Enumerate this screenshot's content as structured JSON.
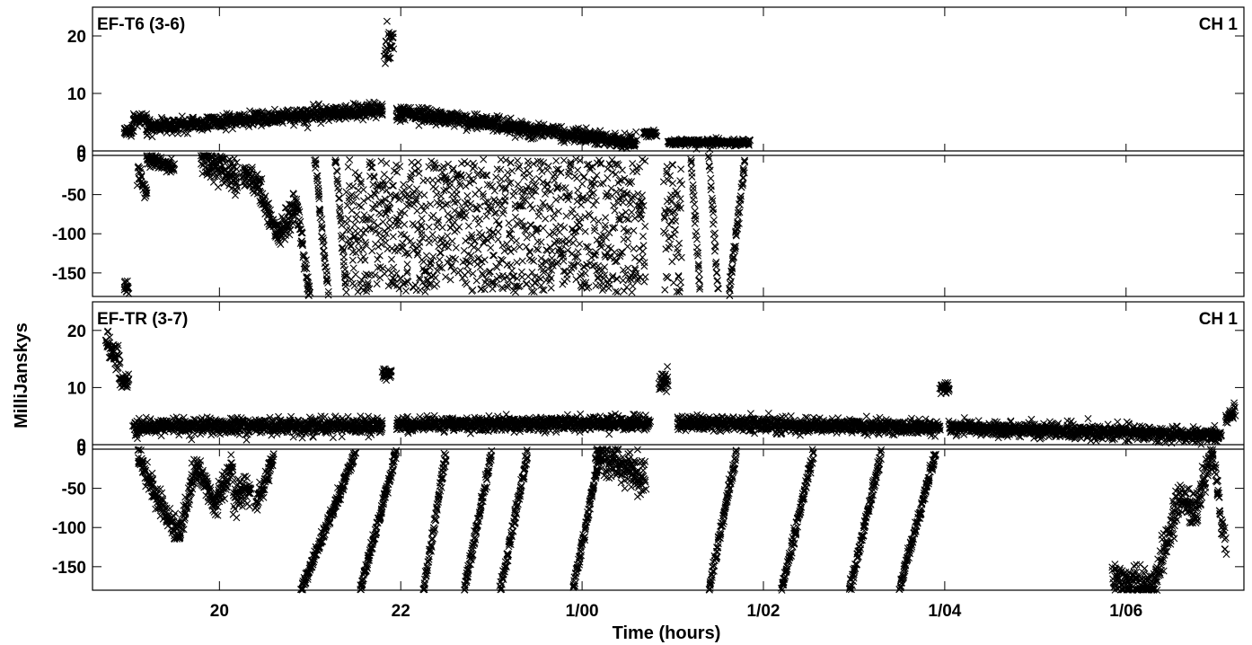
{
  "chart_data": {
    "type": "scatter",
    "marker": "x",
    "marker_color": "#000000",
    "xlabel": "Time (hours)",
    "ylabel": "MilliJanskys",
    "xlim": [
      18.6,
      31.3
    ],
    "x_ticks": [
      {
        "value": 20,
        "label": "20"
      },
      {
        "value": 22,
        "label": "22"
      },
      {
        "value": 24,
        "label": "1/00"
      },
      {
        "value": 26,
        "label": "1/02"
      },
      {
        "value": 28,
        "label": "1/04"
      },
      {
        "value": 30,
        "label": "1/06"
      }
    ],
    "upper_ylim": [
      0,
      25
    ],
    "upper_yticks": [
      {
        "value": 0,
        "label": "0"
      },
      {
        "value": 10,
        "label": "10"
      },
      {
        "value": 20,
        "label": "20"
      }
    ],
    "lower_ylim": [
      -180,
      0
    ],
    "lower_yticks": [
      {
        "value": 0,
        "label": "0"
      },
      {
        "value": -50,
        "label": "-50"
      },
      {
        "value": -100,
        "label": "-100"
      },
      {
        "value": -150,
        "label": "-150"
      }
    ],
    "panels": [
      {
        "baseline": "EF-T6 (3-6)",
        "channel": "CH 1",
        "upper": [
          {
            "t0": 18.95,
            "t1": 19.05,
            "v0": 3.5,
            "v1": 3.5,
            "sd": 0.4
          },
          {
            "t0": 19.05,
            "t1": 19.2,
            "v0": 5.5,
            "v1": 5.5,
            "sd": 0.5
          },
          {
            "t0": 19.2,
            "t1": 21.8,
            "v0": 4.2,
            "v1": 7.2,
            "sd": 0.6
          },
          {
            "t0": 21.82,
            "t1": 21.92,
            "v0": 17,
            "v1": 20,
            "sd": 1.2
          },
          {
            "t0": 21.95,
            "t1": 24.6,
            "v0": 6.8,
            "v1": 1.3,
            "sd": 0.6
          },
          {
            "t0": 24.68,
            "t1": 24.82,
            "v0": 3.0,
            "v1": 3.0,
            "sd": 0.3
          },
          {
            "t0": 24.95,
            "t1": 25.85,
            "v0": 1.5,
            "v1": 1.5,
            "sd": 0.3
          }
        ],
        "lower": [
          {
            "t0": 18.95,
            "t1": 19.0,
            "v0": -165,
            "v1": -175,
            "sd": 4
          },
          {
            "t0": 19.1,
            "t1": 19.2,
            "v0": -25,
            "v1": -45,
            "sd": 8
          },
          {
            "t0": 19.2,
            "t1": 19.5,
            "v0": -5,
            "v1": -15,
            "sd": 4
          },
          {
            "t0": 19.8,
            "t1": 20.2,
            "v0": -5,
            "v1": -30,
            "sd": 10
          },
          {
            "t0": 20.25,
            "t1": 20.45,
            "v0": -20,
            "v1": -40,
            "sd": 8
          },
          {
            "t0": 20.45,
            "t1": 20.65,
            "v0": -50,
            "v1": -100,
            "sd": 8
          },
          {
            "t0": 20.65,
            "t1": 20.85,
            "v0": -100,
            "v1": -70,
            "sd": 10
          },
          {
            "t0": 20.85,
            "t1": 21.0,
            "v0": -60,
            "v1": -180,
            "sd": 6
          },
          {
            "t0": 21.05,
            "t1": 21.2,
            "v0": 0,
            "v1": -175,
            "sd": 4
          },
          {
            "t0": 21.28,
            "t1": 21.4,
            "v0": 0,
            "v1": -175,
            "sd": 4
          },
          {
            "t0": 21.4,
            "t1": 24.7,
            "v0": -5,
            "v1": -175,
            "sd": 40,
            "random": true
          },
          {
            "t0": 24.9,
            "t1": 25.1,
            "v0": -5,
            "v1": -175,
            "sd": 30,
            "random": true
          },
          {
            "t0": 25.2,
            "t1": 25.3,
            "v0": 0,
            "v1": -175,
            "sd": 4
          },
          {
            "t0": 25.4,
            "t1": 25.5,
            "v0": 0,
            "v1": -175,
            "sd": 4
          },
          {
            "t0": 25.62,
            "t1": 25.8,
            "v0": -175,
            "v1": -5,
            "sd": 4
          }
        ]
      },
      {
        "baseline": "EF-TR (3-7)",
        "channel": "CH 1",
        "upper": [
          {
            "t0": 18.75,
            "t1": 18.9,
            "v0": 18,
            "v1": 15,
            "sd": 1.2
          },
          {
            "t0": 18.9,
            "t1": 19.0,
            "v0": 11.5,
            "v1": 11,
            "sd": 0.8
          },
          {
            "t0": 19.05,
            "t1": 21.8,
            "v0": 3.2,
            "v1": 3.3,
            "sd": 0.7
          },
          {
            "t0": 21.8,
            "t1": 21.9,
            "v0": 12.5,
            "v1": 12.5,
            "sd": 0.5
          },
          {
            "t0": 21.95,
            "t1": 24.75,
            "v0": 3.5,
            "v1": 3.8,
            "sd": 0.6
          },
          {
            "t0": 24.85,
            "t1": 24.95,
            "v0": 11,
            "v1": 11,
            "sd": 1
          },
          {
            "t0": 25.05,
            "t1": 27.95,
            "v0": 3.8,
            "v1": 3.0,
            "sd": 0.6
          },
          {
            "t0": 27.95,
            "t1": 28.05,
            "v0": 10,
            "v1": 10,
            "sd": 0.6
          },
          {
            "t0": 28.05,
            "t1": 31.05,
            "v0": 3.0,
            "v1": 1.6,
            "sd": 0.6
          },
          {
            "t0": 31.1,
            "t1": 31.2,
            "v0": 4.5,
            "v1": 6.0,
            "sd": 0.6
          }
        ],
        "lower": [
          {
            "t0": 19.1,
            "t1": 19.3,
            "v0": -5,
            "v1": -60,
            "sd": 8
          },
          {
            "t0": 19.3,
            "t1": 19.55,
            "v0": -60,
            "v1": -110,
            "sd": 8
          },
          {
            "t0": 19.55,
            "t1": 19.75,
            "v0": -110,
            "v1": -20,
            "sd": 8
          },
          {
            "t0": 19.75,
            "t1": 19.95,
            "v0": -20,
            "v1": -70,
            "sd": 8
          },
          {
            "t0": 19.95,
            "t1": 20.15,
            "v0": -70,
            "v1": -20,
            "sd": 8
          },
          {
            "t0": 20.15,
            "t1": 20.35,
            "v0": -60,
            "v1": -50,
            "sd": 10
          },
          {
            "t0": 20.4,
            "t1": 20.6,
            "v0": -75,
            "v1": -5,
            "sd": 6
          },
          {
            "t0": 20.9,
            "t1": 21.5,
            "v0": -180,
            "v1": -5,
            "sd": 4
          },
          {
            "t0": 21.55,
            "t1": 21.95,
            "v0": -180,
            "v1": -5,
            "sd": 4
          },
          {
            "t0": 22.25,
            "t1": 22.5,
            "v0": -180,
            "v1": -5,
            "sd": 4
          },
          {
            "t0": 22.7,
            "t1": 23.0,
            "v0": -180,
            "v1": -5,
            "sd": 4
          },
          {
            "t0": 23.1,
            "t1": 23.4,
            "v0": -180,
            "v1": -5,
            "sd": 4
          },
          {
            "t0": 23.9,
            "t1": 24.2,
            "v0": -180,
            "v1": -5,
            "sd": 4
          },
          {
            "t0": 24.15,
            "t1": 24.7,
            "v0": -5,
            "v1": -35,
            "sd": 12
          },
          {
            "t0": 25.4,
            "t1": 25.7,
            "v0": -180,
            "v1": -5,
            "sd": 4
          },
          {
            "t0": 26.2,
            "t1": 26.55,
            "v0": -180,
            "v1": -5,
            "sd": 4
          },
          {
            "t0": 26.95,
            "t1": 27.3,
            "v0": -180,
            "v1": -5,
            "sd": 4
          },
          {
            "t0": 27.5,
            "t1": 27.9,
            "v0": -180,
            "v1": -5,
            "sd": 4
          },
          {
            "t0": 29.85,
            "t1": 30.3,
            "v0": -165,
            "v1": -175,
            "sd": 10
          },
          {
            "t0": 30.3,
            "t1": 30.6,
            "v0": -175,
            "v1": -60,
            "sd": 12
          },
          {
            "t0": 30.6,
            "t1": 30.75,
            "v0": -60,
            "v1": -80,
            "sd": 12
          },
          {
            "t0": 30.75,
            "t1": 30.95,
            "v0": -80,
            "v1": -5,
            "sd": 10
          },
          {
            "t0": 30.95,
            "t1": 31.1,
            "v0": -5,
            "v1": -130,
            "sd": 8
          }
        ]
      }
    ]
  }
}
